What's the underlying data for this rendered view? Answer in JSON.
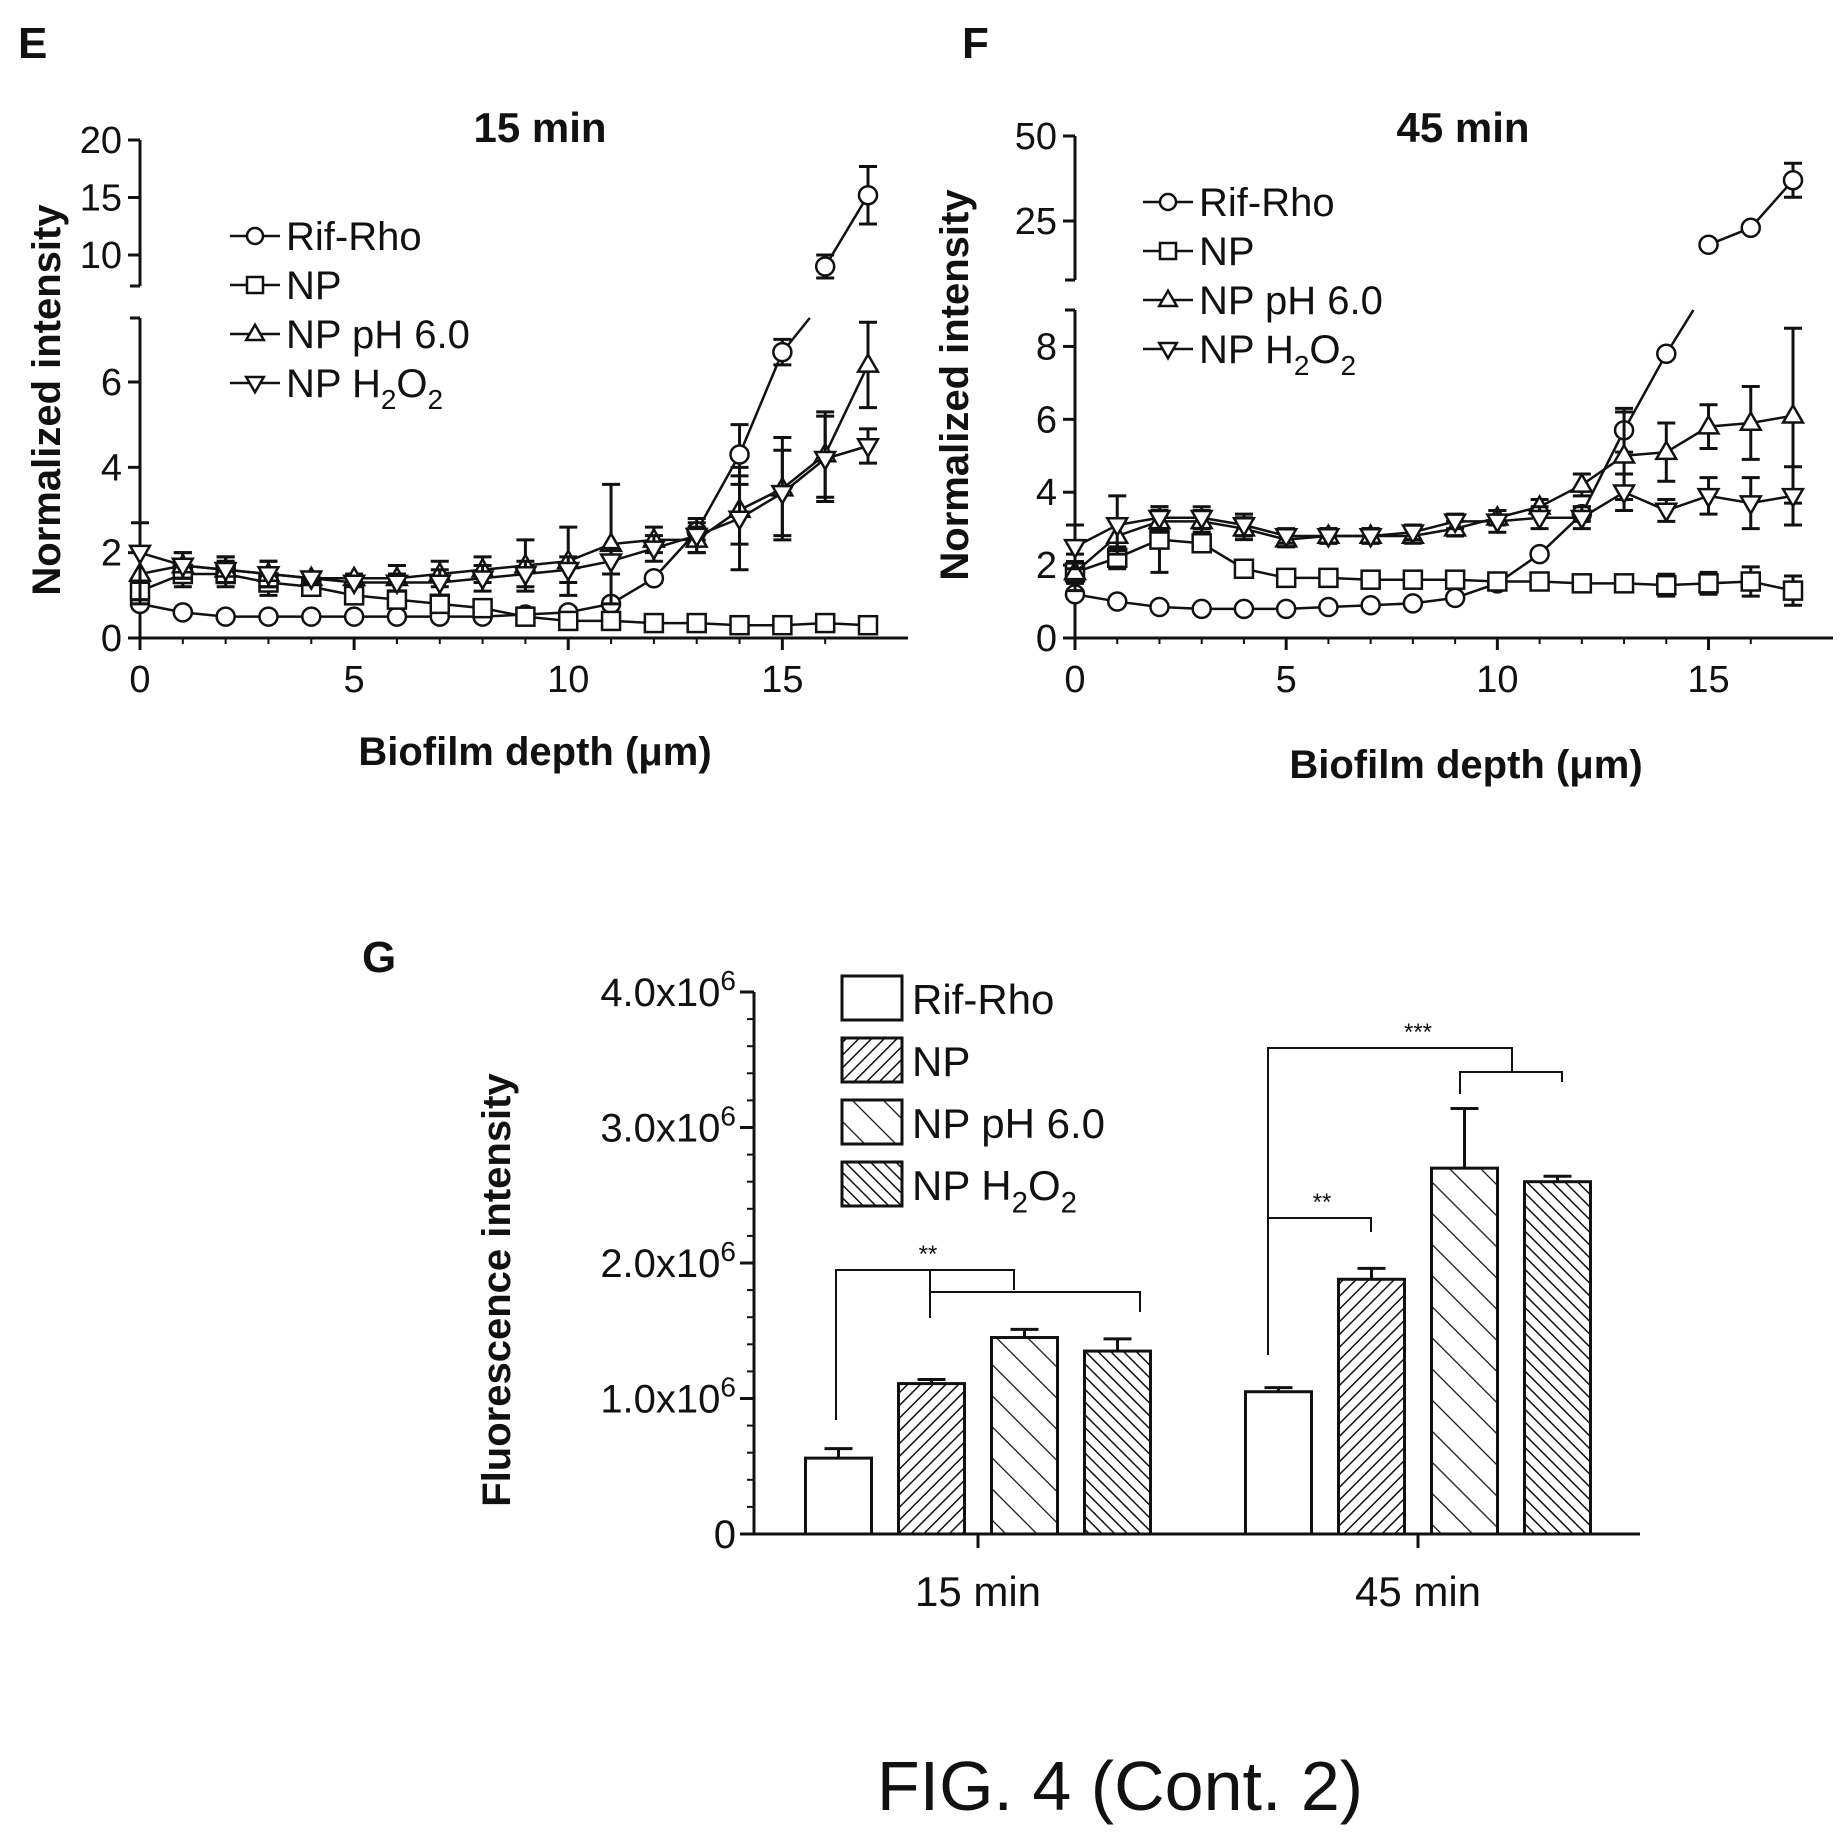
{
  "figure_label": "FIG. 4 (Cont. 2)",
  "chart_data": [
    {
      "panel": "E",
      "type": "line",
      "title": "15 min",
      "xlabel": "Biofilm depth (μm)",
      "ylabel": "Normalized intensity",
      "xlim": [
        0,
        17
      ],
      "ylim_lower": [
        0,
        7.5
      ],
      "ylim_upper": [
        8,
        20
      ],
      "xticks": [
        "0",
        "5",
        "10",
        "15"
      ],
      "yticks_lower": [
        "0",
        "2",
        "4",
        "6"
      ],
      "yticks_upper": [
        "10",
        "15",
        "20"
      ],
      "legend": [
        {
          "label": "Rif-Rho"
        },
        {
          "label": "NP"
        },
        {
          "label": "NP pH 6.0"
        },
        {
          "label": "NP H",
          "sub1": "2",
          "mid": "O",
          "sub2": "2"
        }
      ],
      "series": [
        {
          "name": "Rif-Rho",
          "marker": "circle",
          "x": [
            0,
            1,
            2,
            3,
            4,
            5,
            6,
            7,
            8,
            9,
            10,
            11,
            12,
            13,
            14,
            15,
            16,
            17
          ],
          "y": [
            0.8,
            0.6,
            0.5,
            0.5,
            0.5,
            0.5,
            0.5,
            0.5,
            0.5,
            0.55,
            0.6,
            0.8,
            1.4,
            2.5,
            4.3,
            6.7,
            9.0,
            15.2
          ],
          "err": [
            0.1,
            0.05,
            0.05,
            0.05,
            0.05,
            0.05,
            0.05,
            0.05,
            0.05,
            0.05,
            0.1,
            0.1,
            0.1,
            0.2,
            0.7,
            0.3,
            1.0,
            2.5
          ]
        },
        {
          "name": "NP",
          "marker": "square",
          "x": [
            0,
            1,
            2,
            3,
            4,
            5,
            6,
            7,
            8,
            9,
            10,
            11,
            12,
            13,
            14,
            15,
            16,
            17
          ],
          "y": [
            1.1,
            1.5,
            1.5,
            1.3,
            1.2,
            1.0,
            0.9,
            0.8,
            0.7,
            0.5,
            0.4,
            0.4,
            0.35,
            0.35,
            0.3,
            0.3,
            0.35,
            0.3
          ],
          "err": [
            0.3,
            0.3,
            0.3,
            0.3,
            0.2,
            0.2,
            0.2,
            0.2,
            0.2,
            0.1,
            0.1,
            0.1,
            0.1,
            0.1,
            0.1,
            0.1,
            0.15,
            0.2
          ]
        },
        {
          "name": "NP pH 6.0",
          "marker": "triangle-up",
          "x": [
            0,
            1,
            2,
            3,
            4,
            5,
            6,
            7,
            8,
            9,
            10,
            11,
            12,
            13,
            14,
            15,
            16,
            17
          ],
          "y": [
            1.5,
            1.7,
            1.6,
            1.5,
            1.4,
            1.4,
            1.4,
            1.5,
            1.6,
            1.7,
            1.8,
            2.2,
            2.3,
            2.3,
            3.0,
            3.5,
            4.3,
            6.4
          ],
          "err": [
            0.6,
            0.3,
            0.3,
            0.3,
            0.1,
            0.1,
            0.3,
            0.3,
            0.3,
            0.6,
            0.8,
            1.4,
            0.3,
            0.3,
            0.8,
            1.2,
            1.0,
            1.0
          ]
        },
        {
          "name": "NP H2O2",
          "marker": "triangle-down",
          "x": [
            0,
            1,
            2,
            3,
            4,
            5,
            6,
            7,
            8,
            9,
            10,
            11,
            12,
            13,
            14,
            15,
            16,
            17
          ],
          "y": [
            2.0,
            1.7,
            1.6,
            1.5,
            1.4,
            1.3,
            1.3,
            1.3,
            1.4,
            1.5,
            1.6,
            1.8,
            2.1,
            2.4,
            2.8,
            3.4,
            4.2,
            4.5
          ],
          "err": [
            0.7,
            0.3,
            0.3,
            0.3,
            0.1,
            0.1,
            0.2,
            0.3,
            0.3,
            0.3,
            0.3,
            0.3,
            0.3,
            0.4,
            1.2,
            1.0,
            1.0,
            0.4
          ]
        }
      ]
    },
    {
      "panel": "F",
      "type": "line",
      "title": "45 min",
      "xlabel": "Biofilm depth (μm)",
      "ylabel": "Normalized intensity",
      "xlim": [
        0,
        17
      ],
      "ylim_lower": [
        0,
        9
      ],
      "ylim_upper": [
        10,
        50
      ],
      "xticks": [
        "0",
        "5",
        "10",
        "15"
      ],
      "yticks_lower": [
        "0",
        "2",
        "4",
        "6",
        "8"
      ],
      "yticks_upper": [
        "25",
        "50"
      ],
      "legend": [
        {
          "label": "Rif-Rho"
        },
        {
          "label": "NP"
        },
        {
          "label": "NP pH 6.0"
        },
        {
          "label": "NP H",
          "sub1": "2",
          "mid": "O",
          "sub2": "2"
        }
      ],
      "series": [
        {
          "name": "Rif-Rho",
          "marker": "circle",
          "x": [
            0,
            1,
            2,
            3,
            4,
            5,
            6,
            7,
            8,
            9,
            10,
            11,
            12,
            13,
            14,
            15,
            16,
            17
          ],
          "y": [
            1.2,
            1.0,
            0.85,
            0.8,
            0.8,
            0.8,
            0.85,
            0.9,
            0.95,
            1.1,
            1.5,
            2.3,
            3.4,
            5.7,
            7.8,
            18,
            23,
            37
          ],
          "err": [
            0.1,
            0.05,
            0.05,
            0.05,
            0.05,
            0.05,
            0.05,
            0.05,
            0.05,
            0.1,
            0.1,
            0.1,
            0.2,
            0.6,
            0.1,
            1,
            1,
            5
          ]
        },
        {
          "name": "NP",
          "marker": "square",
          "x": [
            0,
            1,
            2,
            3,
            4,
            5,
            6,
            7,
            8,
            9,
            10,
            11,
            12,
            13,
            14,
            15,
            16,
            17
          ],
          "y": [
            1.8,
            2.2,
            2.7,
            2.6,
            1.9,
            1.65,
            1.65,
            1.6,
            1.6,
            1.6,
            1.55,
            1.55,
            1.5,
            1.5,
            1.45,
            1.5,
            1.55,
            1.3
          ],
          "err": [
            0.3,
            0.3,
            0.9,
            0.2,
            0.2,
            0.2,
            0.2,
            0.2,
            0.2,
            0.2,
            0.2,
            0.2,
            0.2,
            0.2,
            0.3,
            0.3,
            0.4,
            0.4
          ]
        },
        {
          "name": "NP pH 6.0",
          "marker": "triangle-up",
          "x": [
            0,
            1,
            2,
            3,
            4,
            5,
            6,
            7,
            8,
            9,
            10,
            11,
            12,
            13,
            14,
            15,
            16,
            17
          ],
          "y": [
            1.8,
            2.8,
            3.2,
            3.2,
            3.0,
            2.7,
            2.8,
            2.8,
            2.8,
            3.0,
            3.3,
            3.6,
            4.2,
            5.0,
            5.1,
            5.8,
            5.9,
            6.1
          ],
          "err": [
            0.5,
            0.4,
            0.3,
            0.3,
            0.3,
            0.2,
            0.2,
            0.2,
            0.2,
            0.2,
            0.2,
            0.2,
            0.3,
            1.2,
            0.8,
            0.6,
            1.0,
            2.4
          ]
        },
        {
          "name": "NP H2O2",
          "marker": "triangle-down",
          "x": [
            0,
            1,
            2,
            3,
            4,
            5,
            6,
            7,
            8,
            9,
            10,
            11,
            12,
            13,
            14,
            15,
            16,
            17
          ],
          "y": [
            2.5,
            3.1,
            3.3,
            3.3,
            3.1,
            2.8,
            2.8,
            2.8,
            2.9,
            3.2,
            3.2,
            3.3,
            3.3,
            4.0,
            3.5,
            3.9,
            3.7,
            3.9
          ],
          "err": [
            0.6,
            0.8,
            0.3,
            0.3,
            0.3,
            0.2,
            0.2,
            0.2,
            0.2,
            0.2,
            0.3,
            0.3,
            0.3,
            0.5,
            0.3,
            0.5,
            0.7,
            0.8
          ]
        }
      ]
    },
    {
      "panel": "G",
      "type": "bar",
      "ylabel": "Fluorescence intensity",
      "ylim": [
        0,
        4000000
      ],
      "yticks": [
        {
          "base": "0",
          "exp": ""
        },
        {
          "base": "1.0x10",
          "exp": "6"
        },
        {
          "base": "2.0x10",
          "exp": "6"
        },
        {
          "base": "3.0x10",
          "exp": "6"
        },
        {
          "base": "4.0x10",
          "exp": "6"
        }
      ],
      "categories": [
        "15 min",
        "45 min"
      ],
      "legend": [
        {
          "label": "Rif-Rho"
        },
        {
          "label": "NP"
        },
        {
          "label": "NP pH 6.0"
        },
        {
          "label": "NP H",
          "sub1": "2",
          "mid": "O",
          "sub2": "2"
        }
      ],
      "series": [
        {
          "name": "Rif-Rho",
          "pattern": "none",
          "values": [
            560000,
            1050000
          ],
          "err": [
            70000,
            30000
          ]
        },
        {
          "name": "NP",
          "pattern": "fwd-dense",
          "values": [
            1110000,
            1880000
          ],
          "err": [
            30000,
            80000
          ]
        },
        {
          "name": "NP pH 6.0",
          "pattern": "back-sparse",
          "values": [
            1450000,
            2700000
          ],
          "err": [
            60000,
            440000
          ]
        },
        {
          "name": "NP H2O2",
          "pattern": "back-dense",
          "values": [
            1350000,
            2600000
          ],
          "err": [
            90000,
            40000
          ]
        }
      ],
      "significance": [
        "**",
        "**",
        "***"
      ]
    }
  ]
}
